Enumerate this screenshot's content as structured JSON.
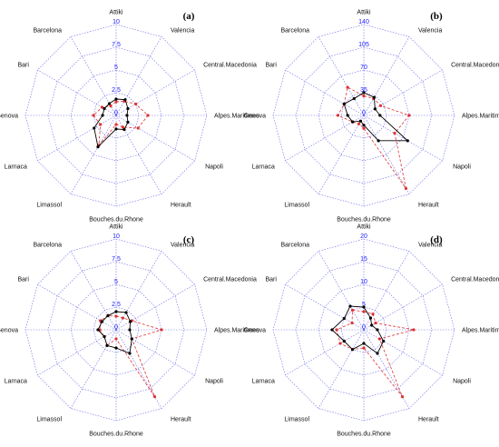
{
  "chart_data": [
    {
      "type": "radar",
      "panel_label": "(a)",
      "axes": [
        "Attiki",
        "Valencia",
        "Central.Macedonia",
        "Alpes.Maritimes",
        "Napoli",
        "Herault",
        "Bouches.du.Rhone",
        "Limassol",
        "Larnaca",
        "Genova",
        "Bari",
        "Barcelona"
      ],
      "ticks": [
        "0",
        "2.5",
        "5",
        "7.5",
        "10"
      ],
      "rmax": 10,
      "series": [
        {
          "values": [
            1.8,
            2.0,
            1.5,
            1.2,
            1.5,
            1.8,
            1.5,
            4.0,
            2.8,
            1.5,
            1.5,
            1.5
          ],
          "color": "#000000",
          "style": "solid"
        },
        {
          "values": [
            1.5,
            1.8,
            2.5,
            3.5,
            2.8,
            1.5,
            1.0,
            3.8,
            2.0,
            2.5,
            1.8,
            1.2
          ],
          "color": "#e03030",
          "style": "dashed"
        }
      ]
    },
    {
      "type": "radar",
      "panel_label": "(b)",
      "axes": [
        "Attiki",
        "Valencia",
        "Central.Macedonia",
        "Alpes.Maritimes",
        "Napoli",
        "Herault",
        "Bouches.du.Rhone",
        "Limassol",
        "Larnaca",
        "Genova",
        "Bari",
        "Barcelona"
      ],
      "ticks": [
        "0",
        "35",
        "70",
        "105",
        "140"
      ],
      "rmax": 140,
      "series": [
        {
          "values": [
            35,
            32,
            20,
            25,
            78,
            45,
            15,
            10,
            20,
            25,
            35,
            30
          ],
          "color": "#000000",
          "style": "solid"
        },
        {
          "values": [
            30,
            30,
            30,
            70,
            55,
            130,
            20,
            15,
            20,
            40,
            35,
            50
          ],
          "color": "#e03030",
          "style": "dashed"
        }
      ]
    },
    {
      "type": "radar",
      "panel_label": "(c)",
      "axes": [
        "Attiki",
        "Valencia",
        "Central.Macedonia",
        "Alpes.Maritimes",
        "Napoli",
        "Herault",
        "Bouches.du.Rhone",
        "Limassol",
        "Larnaca",
        "Genova",
        "Bari",
        "Barcelona"
      ],
      "ticks": [
        "0",
        "2.5",
        "5",
        "7.5",
        "10"
      ],
      "rmax": 10,
      "series": [
        {
          "values": [
            2.0,
            2.2,
            1.8,
            1.5,
            2.0,
            3.0,
            2.0,
            2.0,
            1.5,
            2.0,
            1.8,
            1.8
          ],
          "color": "#000000",
          "style": "solid"
        },
        {
          "values": [
            1.5,
            1.5,
            2.0,
            5.0,
            2.0,
            8.5,
            1.0,
            2.0,
            1.5,
            1.8,
            2.0,
            1.8
          ],
          "color": "#e03030",
          "style": "dashed"
        }
      ]
    },
    {
      "type": "radar",
      "panel_label": "(d)",
      "axes": [
        "Attiki",
        "Valencia",
        "Central.Macedonia",
        "Alpes.Maritimes",
        "Napoli",
        "Herault",
        "Bouches.du.Rhone",
        "Limassol",
        "Larnaca",
        "Genova",
        "Bari",
        "Barcelona"
      ],
      "ticks": [
        "0",
        "5",
        "10",
        "15",
        "20"
      ],
      "rmax": 20,
      "series": [
        {
          "values": [
            5,
            3,
            2,
            3,
            5,
            6,
            3,
            5,
            5,
            7,
            5,
            6
          ],
          "color": "#000000",
          "style": "solid"
        },
        {
          "values": [
            4,
            4,
            3,
            11,
            4,
            17,
            4,
            5,
            6,
            6,
            3,
            5
          ],
          "color": "#e03030",
          "style": "dashed"
        }
      ]
    }
  ]
}
